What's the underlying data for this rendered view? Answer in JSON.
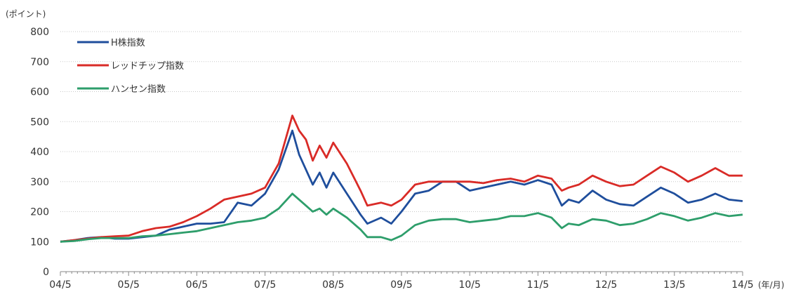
{
  "chart_data": {
    "type": "line",
    "y_unit_label": "(ポイント)",
    "x_unit_label": "(年/月)",
    "ylim": [
      0,
      800
    ],
    "y_ticks": [
      0,
      100,
      200,
      300,
      400,
      500,
      600,
      700,
      800
    ],
    "x_ticks": [
      "04/5",
      "05/5",
      "06/5",
      "07/5",
      "08/5",
      "09/5",
      "10/5",
      "11/5",
      "12/5",
      "13/5",
      "14/5"
    ],
    "grid": true,
    "legend_position": "top-left",
    "series": [
      {
        "name": "H株指数",
        "color": "#1f4e9c",
        "points": [
          [
            0,
            100
          ],
          [
            0.2,
            105
          ],
          [
            0.4,
            112
          ],
          [
            0.6,
            115
          ],
          [
            0.8,
            110
          ],
          [
            1.0,
            110
          ],
          [
            1.2,
            115
          ],
          [
            1.4,
            120
          ],
          [
            1.6,
            140
          ],
          [
            1.8,
            150
          ],
          [
            2.0,
            160
          ],
          [
            2.2,
            160
          ],
          [
            2.4,
            165
          ],
          [
            2.6,
            230
          ],
          [
            2.8,
            220
          ],
          [
            3.0,
            260
          ],
          [
            3.2,
            340
          ],
          [
            3.4,
            470
          ],
          [
            3.5,
            390
          ],
          [
            3.6,
            340
          ],
          [
            3.7,
            290
          ],
          [
            3.8,
            330
          ],
          [
            3.9,
            280
          ],
          [
            4.0,
            330
          ],
          [
            4.2,
            260
          ],
          [
            4.4,
            190
          ],
          [
            4.5,
            160
          ],
          [
            4.7,
            180
          ],
          [
            4.85,
            160
          ],
          [
            5.0,
            200
          ],
          [
            5.2,
            260
          ],
          [
            5.4,
            270
          ],
          [
            5.6,
            300
          ],
          [
            5.8,
            300
          ],
          [
            6.0,
            270
          ],
          [
            6.2,
            280
          ],
          [
            6.4,
            290
          ],
          [
            6.6,
            300
          ],
          [
            6.8,
            290
          ],
          [
            7.0,
            305
          ],
          [
            7.2,
            290
          ],
          [
            7.35,
            220
          ],
          [
            7.45,
            240
          ],
          [
            7.6,
            230
          ],
          [
            7.8,
            270
          ],
          [
            8.0,
            240
          ],
          [
            8.2,
            225
          ],
          [
            8.4,
            220
          ],
          [
            8.6,
            250
          ],
          [
            8.8,
            280
          ],
          [
            9.0,
            260
          ],
          [
            9.2,
            230
          ],
          [
            9.4,
            240
          ],
          [
            9.6,
            260
          ],
          [
            9.8,
            240
          ],
          [
            10.0,
            235
          ]
        ]
      },
      {
        "name": "レッドチップ指数",
        "color": "#d92b27",
        "points": [
          [
            0,
            100
          ],
          [
            0.2,
            105
          ],
          [
            0.4,
            110
          ],
          [
            0.6,
            115
          ],
          [
            0.8,
            118
          ],
          [
            1.0,
            120
          ],
          [
            1.2,
            135
          ],
          [
            1.4,
            145
          ],
          [
            1.6,
            150
          ],
          [
            1.8,
            165
          ],
          [
            2.0,
            185
          ],
          [
            2.2,
            210
          ],
          [
            2.4,
            240
          ],
          [
            2.6,
            250
          ],
          [
            2.8,
            260
          ],
          [
            3.0,
            280
          ],
          [
            3.2,
            360
          ],
          [
            3.4,
            520
          ],
          [
            3.5,
            470
          ],
          [
            3.6,
            440
          ],
          [
            3.7,
            370
          ],
          [
            3.8,
            420
          ],
          [
            3.9,
            380
          ],
          [
            4.0,
            430
          ],
          [
            4.2,
            360
          ],
          [
            4.4,
            270
          ],
          [
            4.5,
            220
          ],
          [
            4.7,
            230
          ],
          [
            4.85,
            220
          ],
          [
            5.0,
            240
          ],
          [
            5.2,
            290
          ],
          [
            5.4,
            300
          ],
          [
            5.6,
            300
          ],
          [
            5.8,
            300
          ],
          [
            6.0,
            300
          ],
          [
            6.2,
            295
          ],
          [
            6.4,
            305
          ],
          [
            6.6,
            310
          ],
          [
            6.8,
            300
          ],
          [
            7.0,
            320
          ],
          [
            7.2,
            310
          ],
          [
            7.35,
            270
          ],
          [
            7.45,
            280
          ],
          [
            7.6,
            290
          ],
          [
            7.8,
            320
          ],
          [
            8.0,
            300
          ],
          [
            8.2,
            285
          ],
          [
            8.4,
            290
          ],
          [
            8.6,
            320
          ],
          [
            8.8,
            350
          ],
          [
            9.0,
            330
          ],
          [
            9.2,
            300
          ],
          [
            9.4,
            320
          ],
          [
            9.6,
            345
          ],
          [
            9.8,
            320
          ],
          [
            10.0,
            320
          ]
        ]
      },
      {
        "name": "ハンセン指数",
        "color": "#2e9e6b",
        "points": [
          [
            0,
            100
          ],
          [
            0.2,
            102
          ],
          [
            0.4,
            108
          ],
          [
            0.6,
            112
          ],
          [
            0.8,
            112
          ],
          [
            1.0,
            112
          ],
          [
            1.2,
            118
          ],
          [
            1.4,
            120
          ],
          [
            1.6,
            125
          ],
          [
            1.8,
            130
          ],
          [
            2.0,
            135
          ],
          [
            2.2,
            145
          ],
          [
            2.4,
            155
          ],
          [
            2.6,
            165
          ],
          [
            2.8,
            170
          ],
          [
            3.0,
            180
          ],
          [
            3.2,
            210
          ],
          [
            3.4,
            260
          ],
          [
            3.5,
            240
          ],
          [
            3.6,
            220
          ],
          [
            3.7,
            200
          ],
          [
            3.8,
            210
          ],
          [
            3.9,
            190
          ],
          [
            4.0,
            210
          ],
          [
            4.2,
            180
          ],
          [
            4.4,
            140
          ],
          [
            4.5,
            115
          ],
          [
            4.7,
            115
          ],
          [
            4.85,
            105
          ],
          [
            5.0,
            120
          ],
          [
            5.2,
            155
          ],
          [
            5.4,
            170
          ],
          [
            5.6,
            175
          ],
          [
            5.8,
            175
          ],
          [
            6.0,
            165
          ],
          [
            6.2,
            170
          ],
          [
            6.4,
            175
          ],
          [
            6.6,
            185
          ],
          [
            6.8,
            185
          ],
          [
            7.0,
            195
          ],
          [
            7.2,
            180
          ],
          [
            7.35,
            145
          ],
          [
            7.45,
            160
          ],
          [
            7.6,
            155
          ],
          [
            7.8,
            175
          ],
          [
            8.0,
            170
          ],
          [
            8.2,
            155
          ],
          [
            8.4,
            160
          ],
          [
            8.6,
            175
          ],
          [
            8.8,
            195
          ],
          [
            9.0,
            185
          ],
          [
            9.2,
            170
          ],
          [
            9.4,
            180
          ],
          [
            9.6,
            195
          ],
          [
            9.8,
            185
          ],
          [
            10.0,
            190
          ]
        ]
      }
    ]
  }
}
